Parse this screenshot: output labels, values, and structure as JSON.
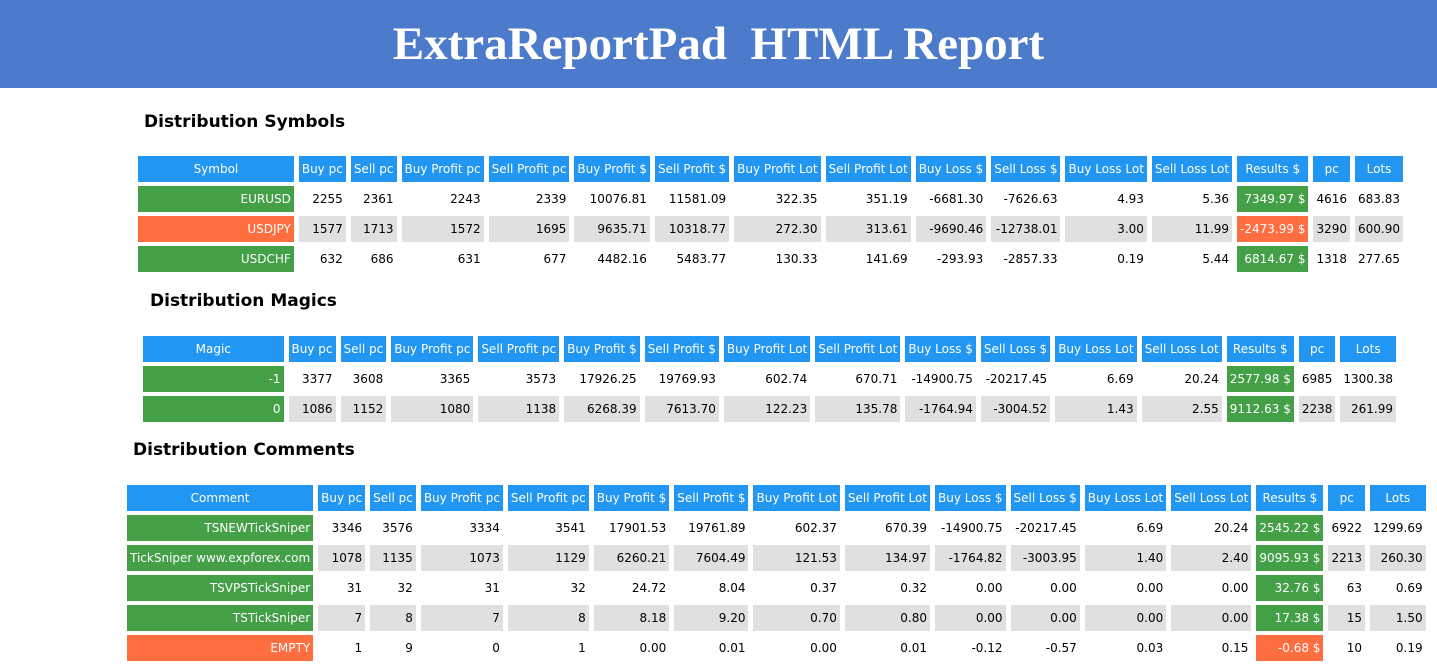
{
  "header": {
    "title": "ExtraReportPad  HTML Report"
  },
  "sections": [
    {
      "title": "Distribution Symbols",
      "columns": [
        "Symbol",
        "Buy pc",
        "Sell pc",
        "Buy Profit pc",
        "Sell Profit pc",
        "Buy Profit $",
        "Sell Profit $",
        "Buy Profit Lot",
        "Sell Profit Lot",
        "Buy Loss $",
        "Sell Loss $",
        "Buy Loss Lot",
        "Sell Loss Lot",
        "Results $",
        "pc",
        "Lots"
      ],
      "rows": [
        {
          "color": "green",
          "cells": [
            "EURUSD",
            "2255",
            "2361",
            "2243",
            "2339",
            "10076.81",
            "11581.09",
            "322.35",
            "351.19",
            "-6681.30",
            "-7626.63",
            "4.93",
            "5.36",
            "7349.97 $",
            "4616",
            "683.83"
          ]
        },
        {
          "color": "red",
          "cells": [
            "USDJPY",
            "1577",
            "1713",
            "1572",
            "1695",
            "9635.71",
            "10318.77",
            "272.30",
            "313.61",
            "-9690.46",
            "-12738.01",
            "3.00",
            "11.99",
            "-2473.99 $",
            "3290",
            "600.90"
          ]
        },
        {
          "color": "green",
          "cells": [
            "USDCHF",
            "632",
            "686",
            "631",
            "677",
            "4482.16",
            "5483.77",
            "130.33",
            "141.69",
            "-293.93",
            "-2857.33",
            "0.19",
            "5.44",
            "6814.67 $",
            "1318",
            "277.65"
          ]
        }
      ]
    },
    {
      "title": "Distribution Magics",
      "columns": [
        "Magic",
        "Buy pc",
        "Sell pc",
        "Buy Profit pc",
        "Sell Profit pc",
        "Buy Profit $",
        "Sell Profit $",
        "Buy Profit Lot",
        "Sell Profit Lot",
        "Buy Loss $",
        "Sell Loss $",
        "Buy Loss Lot",
        "Sell Loss Lot",
        "Results $",
        "pc",
        "Lots"
      ],
      "rows": [
        {
          "color": "green",
          "cells": [
            "-1",
            "3377",
            "3608",
            "3365",
            "3573",
            "17926.25",
            "19769.93",
            "602.74",
            "670.71",
            "-14900.75",
            "-20217.45",
            "6.69",
            "20.24",
            "2577.98 $",
            "6985",
            "1300.38"
          ]
        },
        {
          "color": "green",
          "cells": [
            "0",
            "1086",
            "1152",
            "1080",
            "1138",
            "6268.39",
            "7613.70",
            "122.23",
            "135.78",
            "-1764.94",
            "-3004.52",
            "1.43",
            "2.55",
            "9112.63 $",
            "2238",
            "261.99"
          ]
        }
      ]
    },
    {
      "title": "Distribution Comments",
      "columns": [
        "Comment",
        "Buy pc",
        "Sell pc",
        "Buy Profit pc",
        "Sell Profit pc",
        "Buy Profit $",
        "Sell Profit $",
        "Buy Profit Lot",
        "Sell Profit Lot",
        "Buy Loss $",
        "Sell Loss $",
        "Buy Loss Lot",
        "Sell Loss Lot",
        "Results $",
        "pc",
        "Lots"
      ],
      "rows": [
        {
          "color": "green",
          "cells": [
            "TSNEWTickSniper",
            "3346",
            "3576",
            "3334",
            "3541",
            "17901.53",
            "19761.89",
            "602.37",
            "670.39",
            "-14900.75",
            "-20217.45",
            "6.69",
            "20.24",
            "2545.22 $",
            "6922",
            "1299.69"
          ]
        },
        {
          "color": "green",
          "cells": [
            "TickSniper www.expforex.com",
            "1078",
            "1135",
            "1073",
            "1129",
            "6260.21",
            "7604.49",
            "121.53",
            "134.97",
            "-1764.82",
            "-3003.95",
            "1.40",
            "2.40",
            "9095.93 $",
            "2213",
            "260.30"
          ]
        },
        {
          "color": "green",
          "cells": [
            "TSVPSTickSniper",
            "31",
            "32",
            "31",
            "32",
            "24.72",
            "8.04",
            "0.37",
            "0.32",
            "0.00",
            "0.00",
            "0.00",
            "0.00",
            "32.76 $",
            "63",
            "0.69"
          ]
        },
        {
          "color": "green",
          "cells": [
            "TSTickSniper",
            "7",
            "8",
            "7",
            "8",
            "8.18",
            "9.20",
            "0.70",
            "0.80",
            "0.00",
            "0.00",
            "0.00",
            "0.00",
            "17.38 $",
            "15",
            "1.50"
          ]
        },
        {
          "color": "red",
          "cells": [
            "EMPTY",
            "1",
            "9",
            "0",
            "1",
            "0.00",
            "0.01",
            "0.00",
            "0.01",
            "-0.12",
            "-0.57",
            "0.03",
            "0.15",
            "-0.68 $",
            "10",
            "0.19"
          ]
        }
      ]
    }
  ]
}
